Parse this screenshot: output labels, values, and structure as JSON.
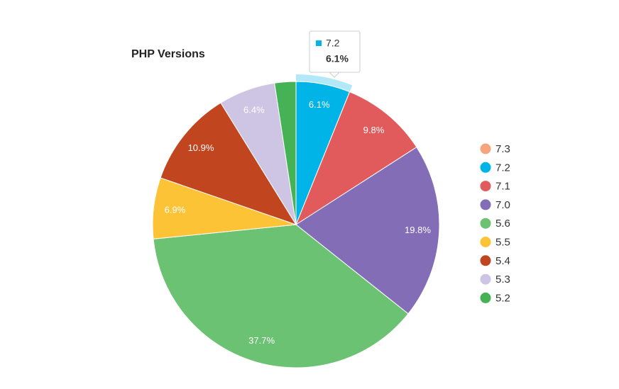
{
  "chart_data": {
    "type": "pie",
    "title": "PHP Versions",
    "categories": [
      "7.3",
      "7.2",
      "7.1",
      "7.0",
      "5.6",
      "5.5",
      "5.4",
      "5.3",
      "5.2"
    ],
    "values": [
      0,
      6.1,
      9.8,
      19.8,
      37.7,
      6.9,
      10.9,
      6.4,
      2.4
    ],
    "value_labels": [
      null,
      "6.1%",
      "9.8%",
      "19.8%",
      "37.7%",
      "6.9%",
      "10.9%",
      "6.4%",
      null
    ],
    "colors": [
      "#f7a57c",
      "#00b4e8",
      "#e25b5c",
      "#826db6",
      "#6cc273",
      "#fdc336",
      "#c1461f",
      "#cdc5e3",
      "#45b255"
    ],
    "legend": "right",
    "highlight": 1
  }
}
